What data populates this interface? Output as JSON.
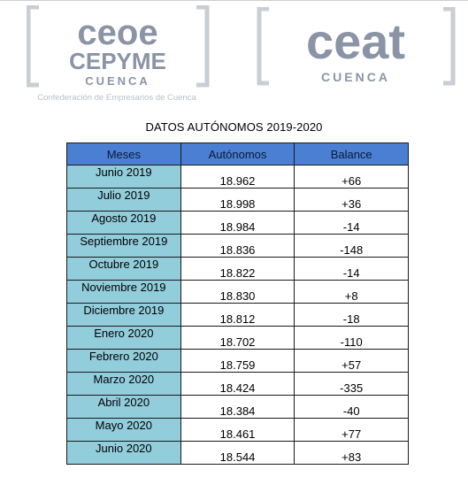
{
  "logos": {
    "left": {
      "line1": "ceoe",
      "line2": "CEPYME",
      "line3": "CUENCA",
      "tagline": "Confederación de Empresarios de Cuenca"
    },
    "right": {
      "line1": "ceat",
      "line2": "CUENCA"
    },
    "color": "#8a94a6"
  },
  "title": "DATOS AUTÓNOMOS 2019-2020",
  "table": {
    "headers": [
      "Meses",
      "Autónomos",
      "Balance"
    ],
    "header_color": "#4a7fd4",
    "month_cell_color": "#92cddc",
    "rows": [
      {
        "month": "Junio 2019",
        "autonomos": "18.962",
        "balance": "+66"
      },
      {
        "month": "Julio 2019",
        "autonomos": "18.998",
        "balance": "+36"
      },
      {
        "month": "Agosto 2019",
        "autonomos": "18.984",
        "balance": "-14"
      },
      {
        "month": "Septiembre 2019",
        "autonomos": "18.836",
        "balance": "-148"
      },
      {
        "month": "Octubre 2019",
        "autonomos": "18.822",
        "balance": "-14"
      },
      {
        "month": "Noviembre 2019",
        "autonomos": "18.830",
        "balance": "+8"
      },
      {
        "month": "Diciembre 2019",
        "autonomos": "18.812",
        "balance": "-18"
      },
      {
        "month": "Enero 2020",
        "autonomos": "18.702",
        "balance": "-110"
      },
      {
        "month": "Febrero 2020",
        "autonomos": "18.759",
        "balance": "+57"
      },
      {
        "month": "Marzo 2020",
        "autonomos": "18.424",
        "balance": "-335"
      },
      {
        "month": "Abril 2020",
        "autonomos": "18.384",
        "balance": "-40"
      },
      {
        "month": "Mayo 2020",
        "autonomos": "18.461",
        "balance": "+77"
      },
      {
        "month": "Junio 2020",
        "autonomos": "18.544",
        "balance": "+83"
      }
    ]
  }
}
